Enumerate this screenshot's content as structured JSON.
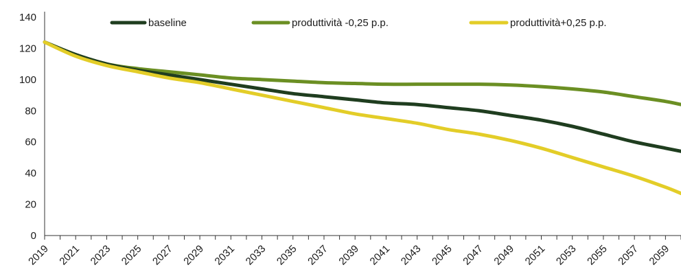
{
  "chart_data": {
    "type": "line",
    "title": "",
    "xlabel": "",
    "ylabel": "",
    "ylim": [
      0,
      140
    ],
    "yticks": [
      "0",
      "20",
      "40",
      "60",
      "80",
      "100",
      "120",
      "140"
    ],
    "x": [
      2019,
      2021,
      2023,
      2025,
      2027,
      2029,
      2031,
      2033,
      2035,
      2037,
      2039,
      2041,
      2043,
      2045,
      2047,
      2049,
      2051,
      2053,
      2055,
      2057,
      2059,
      2060
    ],
    "xticks": [
      "2019",
      "2021",
      "2023",
      "2025",
      "2027",
      "2029",
      "2031",
      "2033",
      "2035",
      "2037",
      "2039",
      "2041",
      "2043",
      "2045",
      "2047",
      "2049",
      "2051",
      "2053",
      "2055",
      "2057",
      "2059"
    ],
    "grid": false,
    "legend_position": "top",
    "series": [
      {
        "name": "baseline",
        "color": "#1f3d1f",
        "values": [
          124,
          116,
          110,
          106,
          103,
          100,
          97,
          94,
          91,
          89,
          87,
          85,
          84,
          82,
          80,
          77,
          74,
          70,
          65,
          60,
          56,
          54
        ]
      },
      {
        "name": "produttività -0,25 p.p.",
        "color": "#6b8f23",
        "values": [
          124,
          116,
          110,
          107,
          105,
          103,
          101,
          100,
          99,
          98,
          97.5,
          97,
          97,
          97,
          97,
          96.5,
          95.5,
          94,
          92,
          89,
          86,
          84
        ]
      },
      {
        "name": "produttività+0,25 p.p.",
        "color": "#e3cd28",
        "values": [
          124,
          115,
          109,
          105,
          101,
          98,
          94,
          90,
          86,
          82,
          78,
          75,
          72,
          68,
          65,
          61,
          56,
          50,
          44,
          38,
          31,
          27
        ]
      }
    ]
  }
}
